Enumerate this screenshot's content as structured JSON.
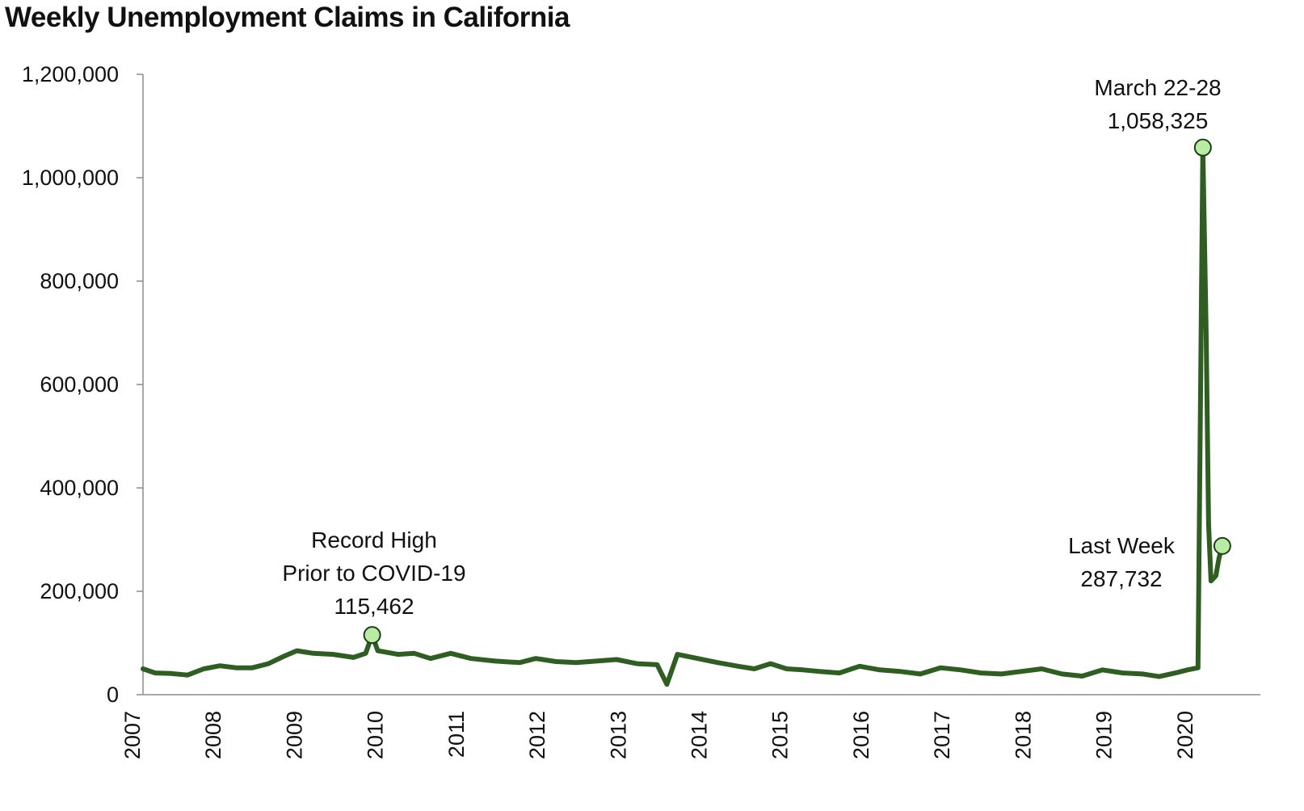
{
  "chart_data": {
    "type": "line",
    "title": "Weekly Unemployment Claims in California",
    "xlabel": "",
    "ylabel": "",
    "ylim": [
      0,
      1200000
    ],
    "grid": false,
    "legend": "none",
    "line_color": "#2e5e22",
    "marker_color": "#b8eba4",
    "y_ticks": [
      "0",
      "200,000",
      "400,000",
      "600,000",
      "800,000",
      "1,000,000",
      "1,200,000"
    ],
    "y_tick_values": [
      0,
      200000,
      400000,
      600000,
      800000,
      1000000,
      1200000
    ],
    "x_ticks": [
      "2007",
      "2008",
      "2009",
      "2010",
      "2011",
      "2012",
      "2013",
      "2014",
      "2015",
      "2016",
      "2017",
      "2018",
      "2019",
      "2020"
    ],
    "x_range": [
      2006.65,
      2020.45
    ],
    "series": [
      {
        "points": [
          [
            2006.65,
            50000
          ],
          [
            2006.8,
            42000
          ],
          [
            2007.0,
            41000
          ],
          [
            2007.2,
            38000
          ],
          [
            2007.4,
            50000
          ],
          [
            2007.6,
            56000
          ],
          [
            2007.8,
            52000
          ],
          [
            2008.0,
            52000
          ],
          [
            2008.2,
            60000
          ],
          [
            2008.4,
            75000
          ],
          [
            2008.55,
            85000
          ],
          [
            2008.75,
            80000
          ],
          [
            2009.0,
            78000
          ],
          [
            2009.25,
            72000
          ],
          [
            2009.4,
            80000
          ],
          [
            2009.48,
            115462
          ],
          [
            2009.55,
            85000
          ],
          [
            2009.8,
            78000
          ],
          [
            2010.0,
            80000
          ],
          [
            2010.2,
            70000
          ],
          [
            2010.45,
            80000
          ],
          [
            2010.7,
            70000
          ],
          [
            2011.0,
            65000
          ],
          [
            2011.3,
            62000
          ],
          [
            2011.5,
            70000
          ],
          [
            2011.75,
            64000
          ],
          [
            2012.0,
            62000
          ],
          [
            2012.25,
            65000
          ],
          [
            2012.5,
            68000
          ],
          [
            2012.75,
            60000
          ],
          [
            2013.0,
            58000
          ],
          [
            2013.12,
            20000
          ],
          [
            2013.25,
            78000
          ],
          [
            2013.5,
            70000
          ],
          [
            2013.75,
            62000
          ],
          [
            2014.0,
            55000
          ],
          [
            2014.2,
            50000
          ],
          [
            2014.4,
            60000
          ],
          [
            2014.6,
            50000
          ],
          [
            2014.8,
            48000
          ],
          [
            2015.0,
            45000
          ],
          [
            2015.25,
            42000
          ],
          [
            2015.5,
            55000
          ],
          [
            2015.75,
            48000
          ],
          [
            2016.0,
            45000
          ],
          [
            2016.25,
            40000
          ],
          [
            2016.5,
            52000
          ],
          [
            2016.75,
            48000
          ],
          [
            2017.0,
            42000
          ],
          [
            2017.25,
            40000
          ],
          [
            2017.5,
            45000
          ],
          [
            2017.75,
            50000
          ],
          [
            2018.0,
            40000
          ],
          [
            2018.25,
            36000
          ],
          [
            2018.5,
            48000
          ],
          [
            2018.75,
            42000
          ],
          [
            2019.0,
            40000
          ],
          [
            2019.2,
            35000
          ],
          [
            2019.4,
            42000
          ],
          [
            2019.55,
            48000
          ],
          [
            2019.68,
            52000
          ],
          [
            2019.74,
            1058325
          ],
          [
            2019.78,
            700000
          ],
          [
            2019.81,
            330000
          ],
          [
            2019.84,
            220000
          ],
          [
            2019.9,
            230000
          ],
          [
            2019.94,
            265000
          ],
          [
            2019.98,
            287732
          ]
        ]
      }
    ],
    "markers": [
      {
        "name": "record-high-marker",
        "x": 2009.48,
        "y": 115462
      },
      {
        "name": "march-peak-marker",
        "x": 2019.74,
        "y": 1058325
      },
      {
        "name": "last-week-marker",
        "x": 2019.98,
        "y": 287732
      }
    ],
    "annotations": [
      {
        "lines": [
          "Record High",
          "Prior to COVID-19",
          "115,462"
        ]
      },
      {
        "lines": [
          "March 22-28",
          "1,058,325"
        ]
      },
      {
        "lines": [
          "Last Week",
          "287,732"
        ]
      }
    ]
  }
}
